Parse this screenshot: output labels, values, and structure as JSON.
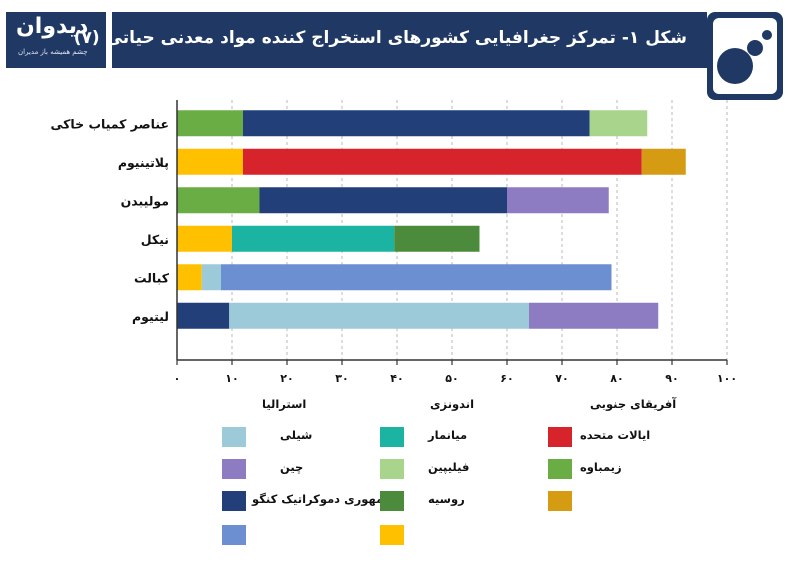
{
  "header": {
    "title": "شکل ۱- تمرکز جغرافیایی کشورهای استخراج کننده مواد معدنی حیاتی (۷)",
    "brand_name": "دیدوان",
    "brand_sub": "چشم همیشه باز مدیران"
  },
  "colors": {
    "chile": "#9ccad9",
    "myanmar": "#1bb3a2",
    "usa": "#d6232c",
    "china": "#8e7cc3",
    "philippines": "#a8d58b",
    "zimbabwe": "#6aad45",
    "drc": "#223f7a",
    "russia": "#4b8b3b",
    "dark_gold": "#d49b13",
    "blue": "#6b8fd1",
    "yellow": "#ffc000",
    "header_navy": "#1f3864"
  },
  "legend_labels": {
    "australia": "استرالیا",
    "indonesia": "اندونزی",
    "south_africa": "آفریقای جنوبی",
    "chile": "شیلی",
    "myanmar": "میانمار",
    "usa": "ایالات متحده",
    "china": "چین",
    "philippines": "فیلیپین",
    "zimbabwe": "زیمباوه",
    "drc": "جمهوری دموکراتیک کنگو",
    "russia": "روسیه"
  },
  "chart_data": {
    "type": "bar",
    "orientation": "horizontal",
    "stacked": true,
    "categories": [
      "عناصر کمیاب خاکی",
      "پلاتینیوم",
      "مولیبدن",
      "نیکل",
      "کبالت",
      "لیتیوم"
    ],
    "x_ticks": [
      "۰",
      "۱۰",
      "۲۰",
      "۳۰",
      "۴۰",
      "۵۰",
      "۶۰",
      "۷۰",
      "۸۰",
      "۹۰",
      "۱۰۰"
    ],
    "xlim": [
      0,
      100
    ],
    "segments": [
      [
        {
          "color": "zimbabwe",
          "value": 12
        },
        {
          "color": "drc",
          "value": 63
        },
        {
          "color": "philippines",
          "value": 10.5
        }
      ],
      [
        {
          "color": "yellow",
          "value": 12
        },
        {
          "color": "usa",
          "value": 72.5
        },
        {
          "color": "dark_gold",
          "value": 8
        }
      ],
      [
        {
          "color": "zimbabwe",
          "value": 15
        },
        {
          "color": "drc",
          "value": 45
        },
        {
          "color": "china",
          "value": 18.5
        }
      ],
      [
        {
          "color": "yellow",
          "value": 10
        },
        {
          "color": "myanmar",
          "value": 29.5
        },
        {
          "color": "russia",
          "value": 15.5
        }
      ],
      [
        {
          "color": "yellow",
          "value": 4.5
        },
        {
          "color": "chile",
          "value": 3.5
        },
        {
          "color": "blue",
          "value": 71
        }
      ],
      [
        {
          "color": "drc",
          "value": 9.5
        },
        {
          "color": "chile",
          "value": 54.5
        },
        {
          "color": "china",
          "value": 23.5
        }
      ]
    ]
  }
}
